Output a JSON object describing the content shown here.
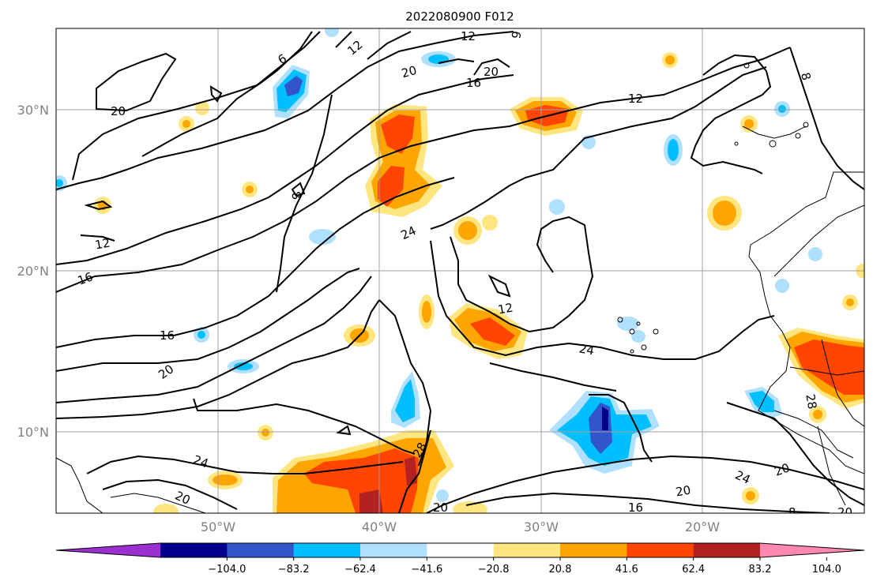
{
  "title": "2022080900 F012",
  "lat_labels": [
    "30°N",
    "20°N",
    "10°N"
  ],
  "lon_labels": [
    "50°W",
    "40°W",
    "30°W",
    "20°W"
  ],
  "colorbar": {
    "ticks": [
      "−104.0",
      "−83.2",
      "−62.4",
      "−41.6",
      "−20.8",
      "20.8",
      "41.6",
      "62.4",
      "83.2",
      "104.0"
    ],
    "colors": [
      "#9b30d0",
      "#00008b",
      "#3355cc",
      "#00bfff",
      "#b0e0ff",
      "#ffffff",
      "#ffe680",
      "#ffa500",
      "#ff4500",
      "#b22222",
      "#ff88b0"
    ]
  },
  "contour_labels": [
    "12",
    "9",
    "6",
    "20",
    "16",
    "20",
    "12",
    "8",
    "20",
    "8",
    "24",
    "12",
    "16",
    "12",
    "16",
    "24",
    "20",
    "28",
    "24",
    "28",
    "20",
    "20",
    "16",
    "24",
    "20",
    "20",
    "8"
  ]
}
